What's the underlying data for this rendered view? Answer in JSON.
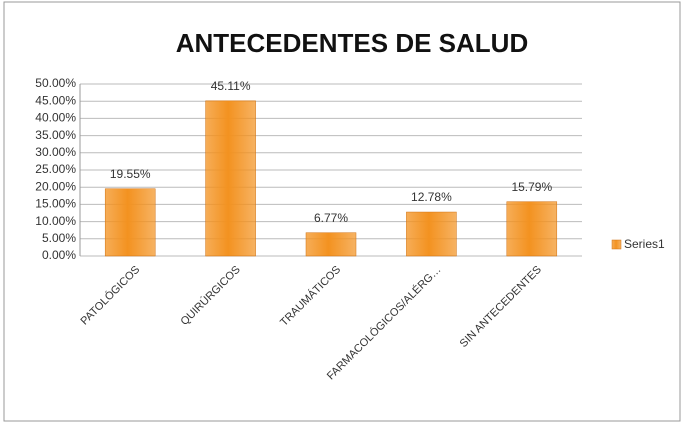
{
  "chart_data": {
    "type": "bar",
    "title": "ANTECEDENTES DE SALUD",
    "categories": [
      "PATOLÓGICOS",
      "QUIRÚRGICOS",
      "TRAUMÁTICOS",
      "FARMACOLÓGICOS/ALÉRG…",
      "SIN ANTECEDENTES"
    ],
    "series": [
      {
        "name": "Series1",
        "color": "#f39220",
        "values": [
          19.55,
          45.11,
          6.77,
          12.78,
          15.79
        ],
        "value_labels": [
          "19.55%",
          "45.11%",
          "6.77%",
          "12.78%",
          "15.79%"
        ]
      }
    ],
    "ylim": [
      0,
      50
    ],
    "yticks": [
      {
        "value": 0,
        "label": "0.00%"
      },
      {
        "value": 5,
        "label": "5.00%"
      },
      {
        "value": 10,
        "label": "10.00%"
      },
      {
        "value": 15,
        "label": "15.00%"
      },
      {
        "value": 20,
        "label": "20.00%"
      },
      {
        "value": 25,
        "label": "25.00%"
      },
      {
        "value": 30,
        "label": "30.00%"
      },
      {
        "value": 35,
        "label": "35.00%"
      },
      {
        "value": 40,
        "label": "40.00%"
      },
      {
        "value": 45,
        "label": "45.00%"
      },
      {
        "value": 50,
        "label": "50.00%"
      }
    ],
    "grid": true,
    "legend": "right"
  }
}
